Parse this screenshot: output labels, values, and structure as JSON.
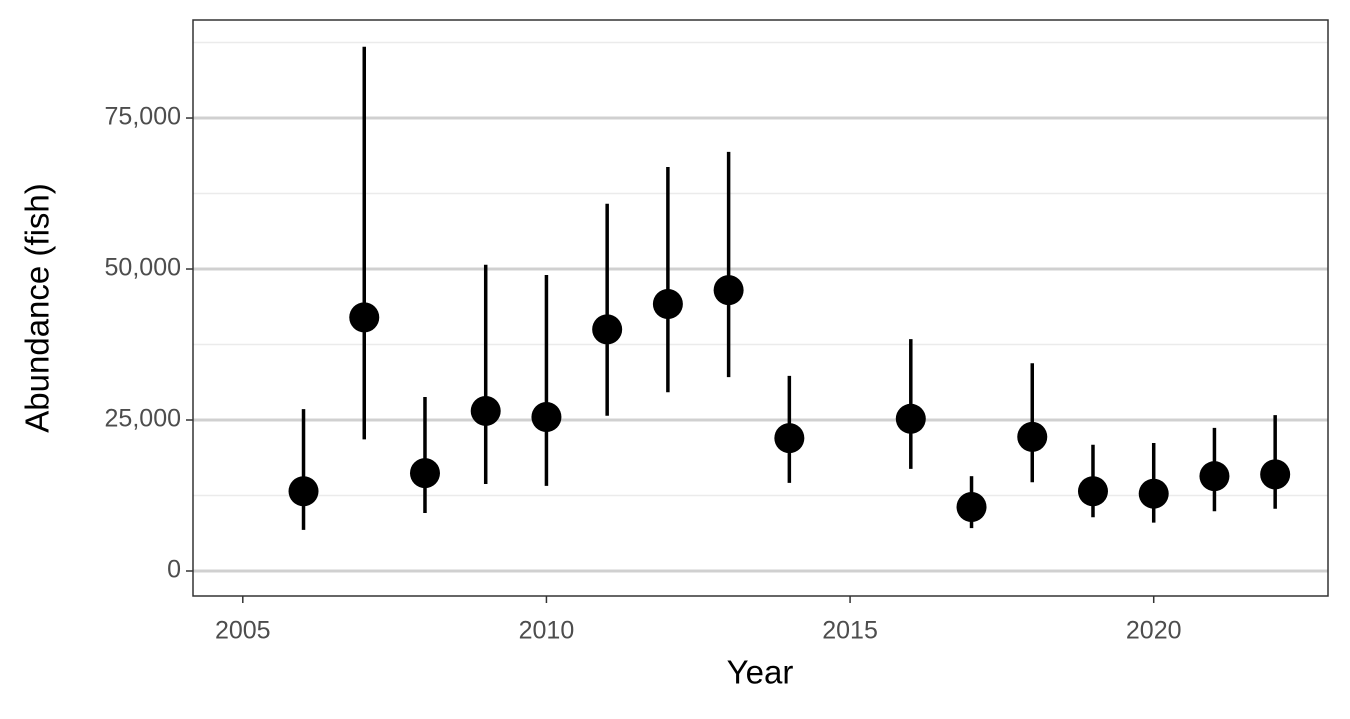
{
  "chart_data": {
    "type": "pointrange",
    "x_label": "Year",
    "y_label": "Abundance (fish)",
    "x": [
      2006,
      2007,
      2008,
      2009,
      2010,
      2011,
      2012,
      2013,
      2014,
      2016,
      2017,
      2018,
      2019,
      2020,
      2021,
      2022
    ],
    "series": [
      {
        "color": "#000000",
        "values": [
          13200,
          42000,
          16200,
          26500,
          25500,
          40000,
          44200,
          46500,
          22000,
          25200,
          10600,
          22200,
          13200,
          12800,
          15700,
          16000
        ],
        "lower": [
          6800,
          21800,
          9600,
          14400,
          14100,
          25700,
          29600,
          32100,
          14600,
          16900,
          7100,
          14700,
          8900,
          8000,
          9900,
          10300
        ],
        "upper": [
          26800,
          86800,
          28800,
          50700,
          49000,
          60800,
          66900,
          69400,
          32300,
          38400,
          15700,
          34400,
          20900,
          21200,
          23700,
          25800
        ]
      }
    ],
    "xlim": [
      2004.18,
      2022.87
    ],
    "ylim": [
      -4140,
      91230
    ],
    "xticks": [
      2005,
      2010,
      2015,
      2020
    ],
    "yticks": [
      0,
      {
        "value": 25000,
        "label": "25,000"
      },
      {
        "value": 50000,
        "label": "50,000"
      },
      {
        "value": 75000,
        "label": "75,000"
      }
    ],
    "y_minor_ticks": [
      12500,
      37500,
      62500,
      87500
    ],
    "grid": "y"
  }
}
